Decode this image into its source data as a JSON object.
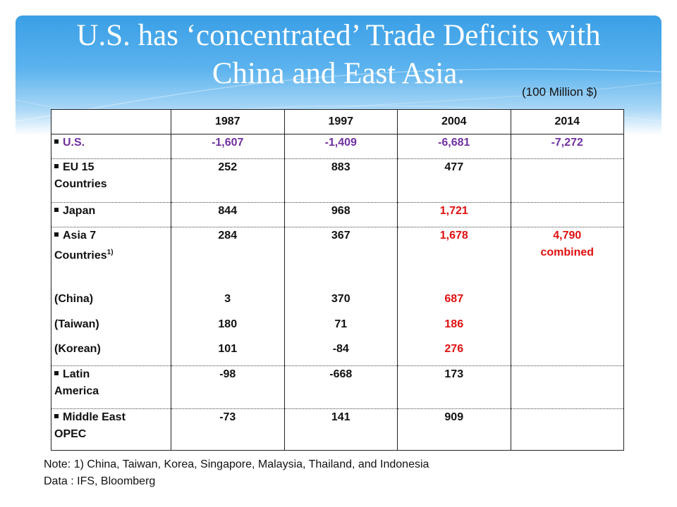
{
  "slide": {
    "title_line1": "U.S. has ‘concentrated’ Trade Deficits with",
    "title_line2": "China and East Asia.",
    "unit": "(100 Million $)"
  },
  "table": {
    "headers": [
      "",
      "1987",
      "1997",
      "2004",
      "2014"
    ],
    "rows": [
      {
        "label": "U.S.",
        "values": [
          "-1,607",
          "-1,409",
          "-6,681",
          "-7,272"
        ]
      },
      {
        "label_line1": "EU 15",
        "label_line2": "Countries",
        "values": [
          "252",
          "883",
          "477",
          ""
        ]
      },
      {
        "label": "Japan",
        "values": [
          "844",
          "968",
          "1,721",
          ""
        ]
      },
      {
        "label_line1": "Asia 7",
        "label_line2": "Countries",
        "label_sup": "1)",
        "values": [
          "284",
          "367",
          "1,678",
          "4,790"
        ],
        "extra_2014": "combined"
      },
      {
        "label": "(China)",
        "values": [
          "3",
          "370",
          "687",
          ""
        ]
      },
      {
        "label": "(Taiwan)",
        "values": [
          "180",
          "71",
          "186",
          ""
        ]
      },
      {
        "label": "(Korean)",
        "values": [
          "101",
          "-84",
          "276",
          ""
        ]
      },
      {
        "label_line1": "Latin",
        "label_line2": "America",
        "values": [
          "-98",
          "-668",
          "173",
          ""
        ]
      },
      {
        "label_line1": "Middle East",
        "label_line2": "OPEC",
        "values": [
          "-73",
          "141",
          "909",
          ""
        ]
      }
    ]
  },
  "notes": {
    "note1": "Note: 1) China, Taiwan, Korea, Singapore, Malaysia, Thailand, and Indonesia",
    "source": "Data : IFS, Bloomberg"
  },
  "colors": {
    "banner": "#3a9fe6",
    "us_row": "#7030a0",
    "highlight": "#e01010"
  }
}
